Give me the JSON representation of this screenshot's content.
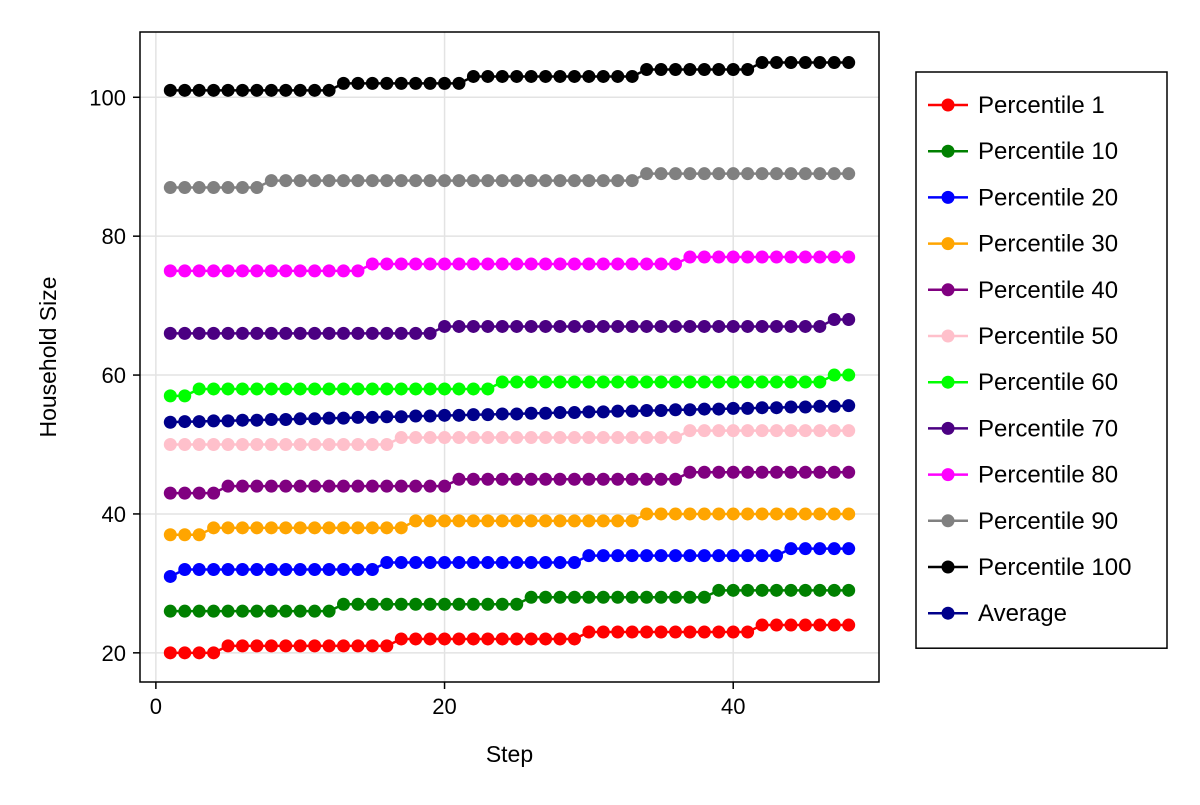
{
  "chart_data": {
    "type": "line",
    "title": "",
    "xlabel": "Step",
    "ylabel": "Household Size",
    "xlim": [
      -1.1,
      50.1
    ],
    "ylim": [
      15.8,
      109.4
    ],
    "xticks": [
      0,
      20,
      40
    ],
    "yticks": [
      20,
      40,
      60,
      80,
      100
    ],
    "grid": true,
    "legend_position": "right",
    "x": [
      1,
      2,
      3,
      4,
      5,
      6,
      7,
      8,
      9,
      10,
      11,
      12,
      13,
      14,
      15,
      16,
      17,
      18,
      19,
      20,
      21,
      22,
      23,
      24,
      25,
      26,
      27,
      28,
      29,
      30,
      31,
      32,
      33,
      34,
      35,
      36,
      37,
      38,
      39,
      40,
      41,
      42,
      43,
      44,
      45,
      46,
      47,
      48
    ],
    "series": [
      {
        "name": "Percentile 1",
        "color": "#ff0000",
        "values": [
          20,
          20,
          20,
          20,
          21,
          21,
          21,
          21,
          21,
          21,
          21,
          21,
          21,
          21,
          21,
          21,
          22,
          22,
          22,
          22,
          22,
          22,
          22,
          22,
          22,
          22,
          22,
          22,
          22,
          23,
          23,
          23,
          23,
          23,
          23,
          23,
          23,
          23,
          23,
          23,
          23,
          24,
          24,
          24,
          24,
          24,
          24,
          24
        ]
      },
      {
        "name": "Percentile 10",
        "color": "#008000",
        "values": [
          26,
          26,
          26,
          26,
          26,
          26,
          26,
          26,
          26,
          26,
          26,
          26,
          27,
          27,
          27,
          27,
          27,
          27,
          27,
          27,
          27,
          27,
          27,
          27,
          27,
          28,
          28,
          28,
          28,
          28,
          28,
          28,
          28,
          28,
          28,
          28,
          28,
          28,
          29,
          29,
          29,
          29,
          29,
          29,
          29,
          29,
          29,
          29
        ]
      },
      {
        "name": "Percentile 20",
        "color": "#0000ff",
        "values": [
          31,
          32,
          32,
          32,
          32,
          32,
          32,
          32,
          32,
          32,
          32,
          32,
          32,
          32,
          32,
          33,
          33,
          33,
          33,
          33,
          33,
          33,
          33,
          33,
          33,
          33,
          33,
          33,
          33,
          34,
          34,
          34,
          34,
          34,
          34,
          34,
          34,
          34,
          34,
          34,
          34,
          34,
          34,
          35,
          35,
          35,
          35,
          35
        ]
      },
      {
        "name": "Percentile 30",
        "color": "#ffa500",
        "values": [
          37,
          37,
          37,
          38,
          38,
          38,
          38,
          38,
          38,
          38,
          38,
          38,
          38,
          38,
          38,
          38,
          38,
          39,
          39,
          39,
          39,
          39,
          39,
          39,
          39,
          39,
          39,
          39,
          39,
          39,
          39,
          39,
          39,
          40,
          40,
          40,
          40,
          40,
          40,
          40,
          40,
          40,
          40,
          40,
          40,
          40,
          40,
          40
        ]
      },
      {
        "name": "Percentile 40",
        "color": "#800080",
        "values": [
          43,
          43,
          43,
          43,
          44,
          44,
          44,
          44,
          44,
          44,
          44,
          44,
          44,
          44,
          44,
          44,
          44,
          44,
          44,
          44,
          45,
          45,
          45,
          45,
          45,
          45,
          45,
          45,
          45,
          45,
          45,
          45,
          45,
          45,
          45,
          45,
          46,
          46,
          46,
          46,
          46,
          46,
          46,
          46,
          46,
          46,
          46,
          46
        ]
      },
      {
        "name": "Percentile 50",
        "color": "#ffc0cb",
        "values": [
          50,
          50,
          50,
          50,
          50,
          50,
          50,
          50,
          50,
          50,
          50,
          50,
          50,
          50,
          50,
          50,
          51,
          51,
          51,
          51,
          51,
          51,
          51,
          51,
          51,
          51,
          51,
          51,
          51,
          51,
          51,
          51,
          51,
          51,
          51,
          51,
          52,
          52,
          52,
          52,
          52,
          52,
          52,
          52,
          52,
          52,
          52,
          52
        ]
      },
      {
        "name": "Percentile 60",
        "color": "#00ff00",
        "values": [
          57,
          57,
          58,
          58,
          58,
          58,
          58,
          58,
          58,
          58,
          58,
          58,
          58,
          58,
          58,
          58,
          58,
          58,
          58,
          58,
          58,
          58,
          58,
          59,
          59,
          59,
          59,
          59,
          59,
          59,
          59,
          59,
          59,
          59,
          59,
          59,
          59,
          59,
          59,
          59,
          59,
          59,
          59,
          59,
          59,
          59,
          60,
          60
        ]
      },
      {
        "name": "Percentile 70",
        "color": "#4b0082",
        "values": [
          66,
          66,
          66,
          66,
          66,
          66,
          66,
          66,
          66,
          66,
          66,
          66,
          66,
          66,
          66,
          66,
          66,
          66,
          66,
          67,
          67,
          67,
          67,
          67,
          67,
          67,
          67,
          67,
          67,
          67,
          67,
          67,
          67,
          67,
          67,
          67,
          67,
          67,
          67,
          67,
          67,
          67,
          67,
          67,
          67,
          67,
          68,
          68
        ]
      },
      {
        "name": "Percentile 80",
        "color": "#ff00ff",
        "values": [
          75,
          75,
          75,
          75,
          75,
          75,
          75,
          75,
          75,
          75,
          75,
          75,
          75,
          75,
          76,
          76,
          76,
          76,
          76,
          76,
          76,
          76,
          76,
          76,
          76,
          76,
          76,
          76,
          76,
          76,
          76,
          76,
          76,
          76,
          76,
          76,
          77,
          77,
          77,
          77,
          77,
          77,
          77,
          77,
          77,
          77,
          77,
          77
        ]
      },
      {
        "name": "Percentile 90",
        "color": "#808080",
        "values": [
          87,
          87,
          87,
          87,
          87,
          87,
          87,
          88,
          88,
          88,
          88,
          88,
          88,
          88,
          88,
          88,
          88,
          88,
          88,
          88,
          88,
          88,
          88,
          88,
          88,
          88,
          88,
          88,
          88,
          88,
          88,
          88,
          88,
          89,
          89,
          89,
          89,
          89,
          89,
          89,
          89,
          89,
          89,
          89,
          89,
          89,
          89,
          89
        ]
      },
      {
        "name": "Percentile 100",
        "color": "#000000",
        "values": [
          101,
          101,
          101,
          101,
          101,
          101,
          101,
          101,
          101,
          101,
          101,
          101,
          102,
          102,
          102,
          102,
          102,
          102,
          102,
          102,
          102,
          103,
          103,
          103,
          103,
          103,
          103,
          103,
          103,
          103,
          103,
          103,
          103,
          104,
          104,
          104,
          104,
          104,
          104,
          104,
          104,
          105,
          105,
          105,
          105,
          105,
          105,
          105
        ]
      },
      {
        "name": "Average",
        "color": "#00008b",
        "values": [
          53.2,
          53.3,
          53.3,
          53.4,
          53.4,
          53.5,
          53.5,
          53.6,
          53.6,
          53.7,
          53.7,
          53.8,
          53.8,
          53.9,
          53.9,
          54.0,
          54.0,
          54.1,
          54.1,
          54.2,
          54.2,
          54.3,
          54.3,
          54.4,
          54.4,
          54.5,
          54.5,
          54.6,
          54.6,
          54.7,
          54.7,
          54.8,
          54.8,
          54.9,
          54.9,
          55.0,
          55.0,
          55.1,
          55.1,
          55.2,
          55.2,
          55.3,
          55.3,
          55.4,
          55.4,
          55.5,
          55.5,
          55.6
        ]
      }
    ]
  }
}
